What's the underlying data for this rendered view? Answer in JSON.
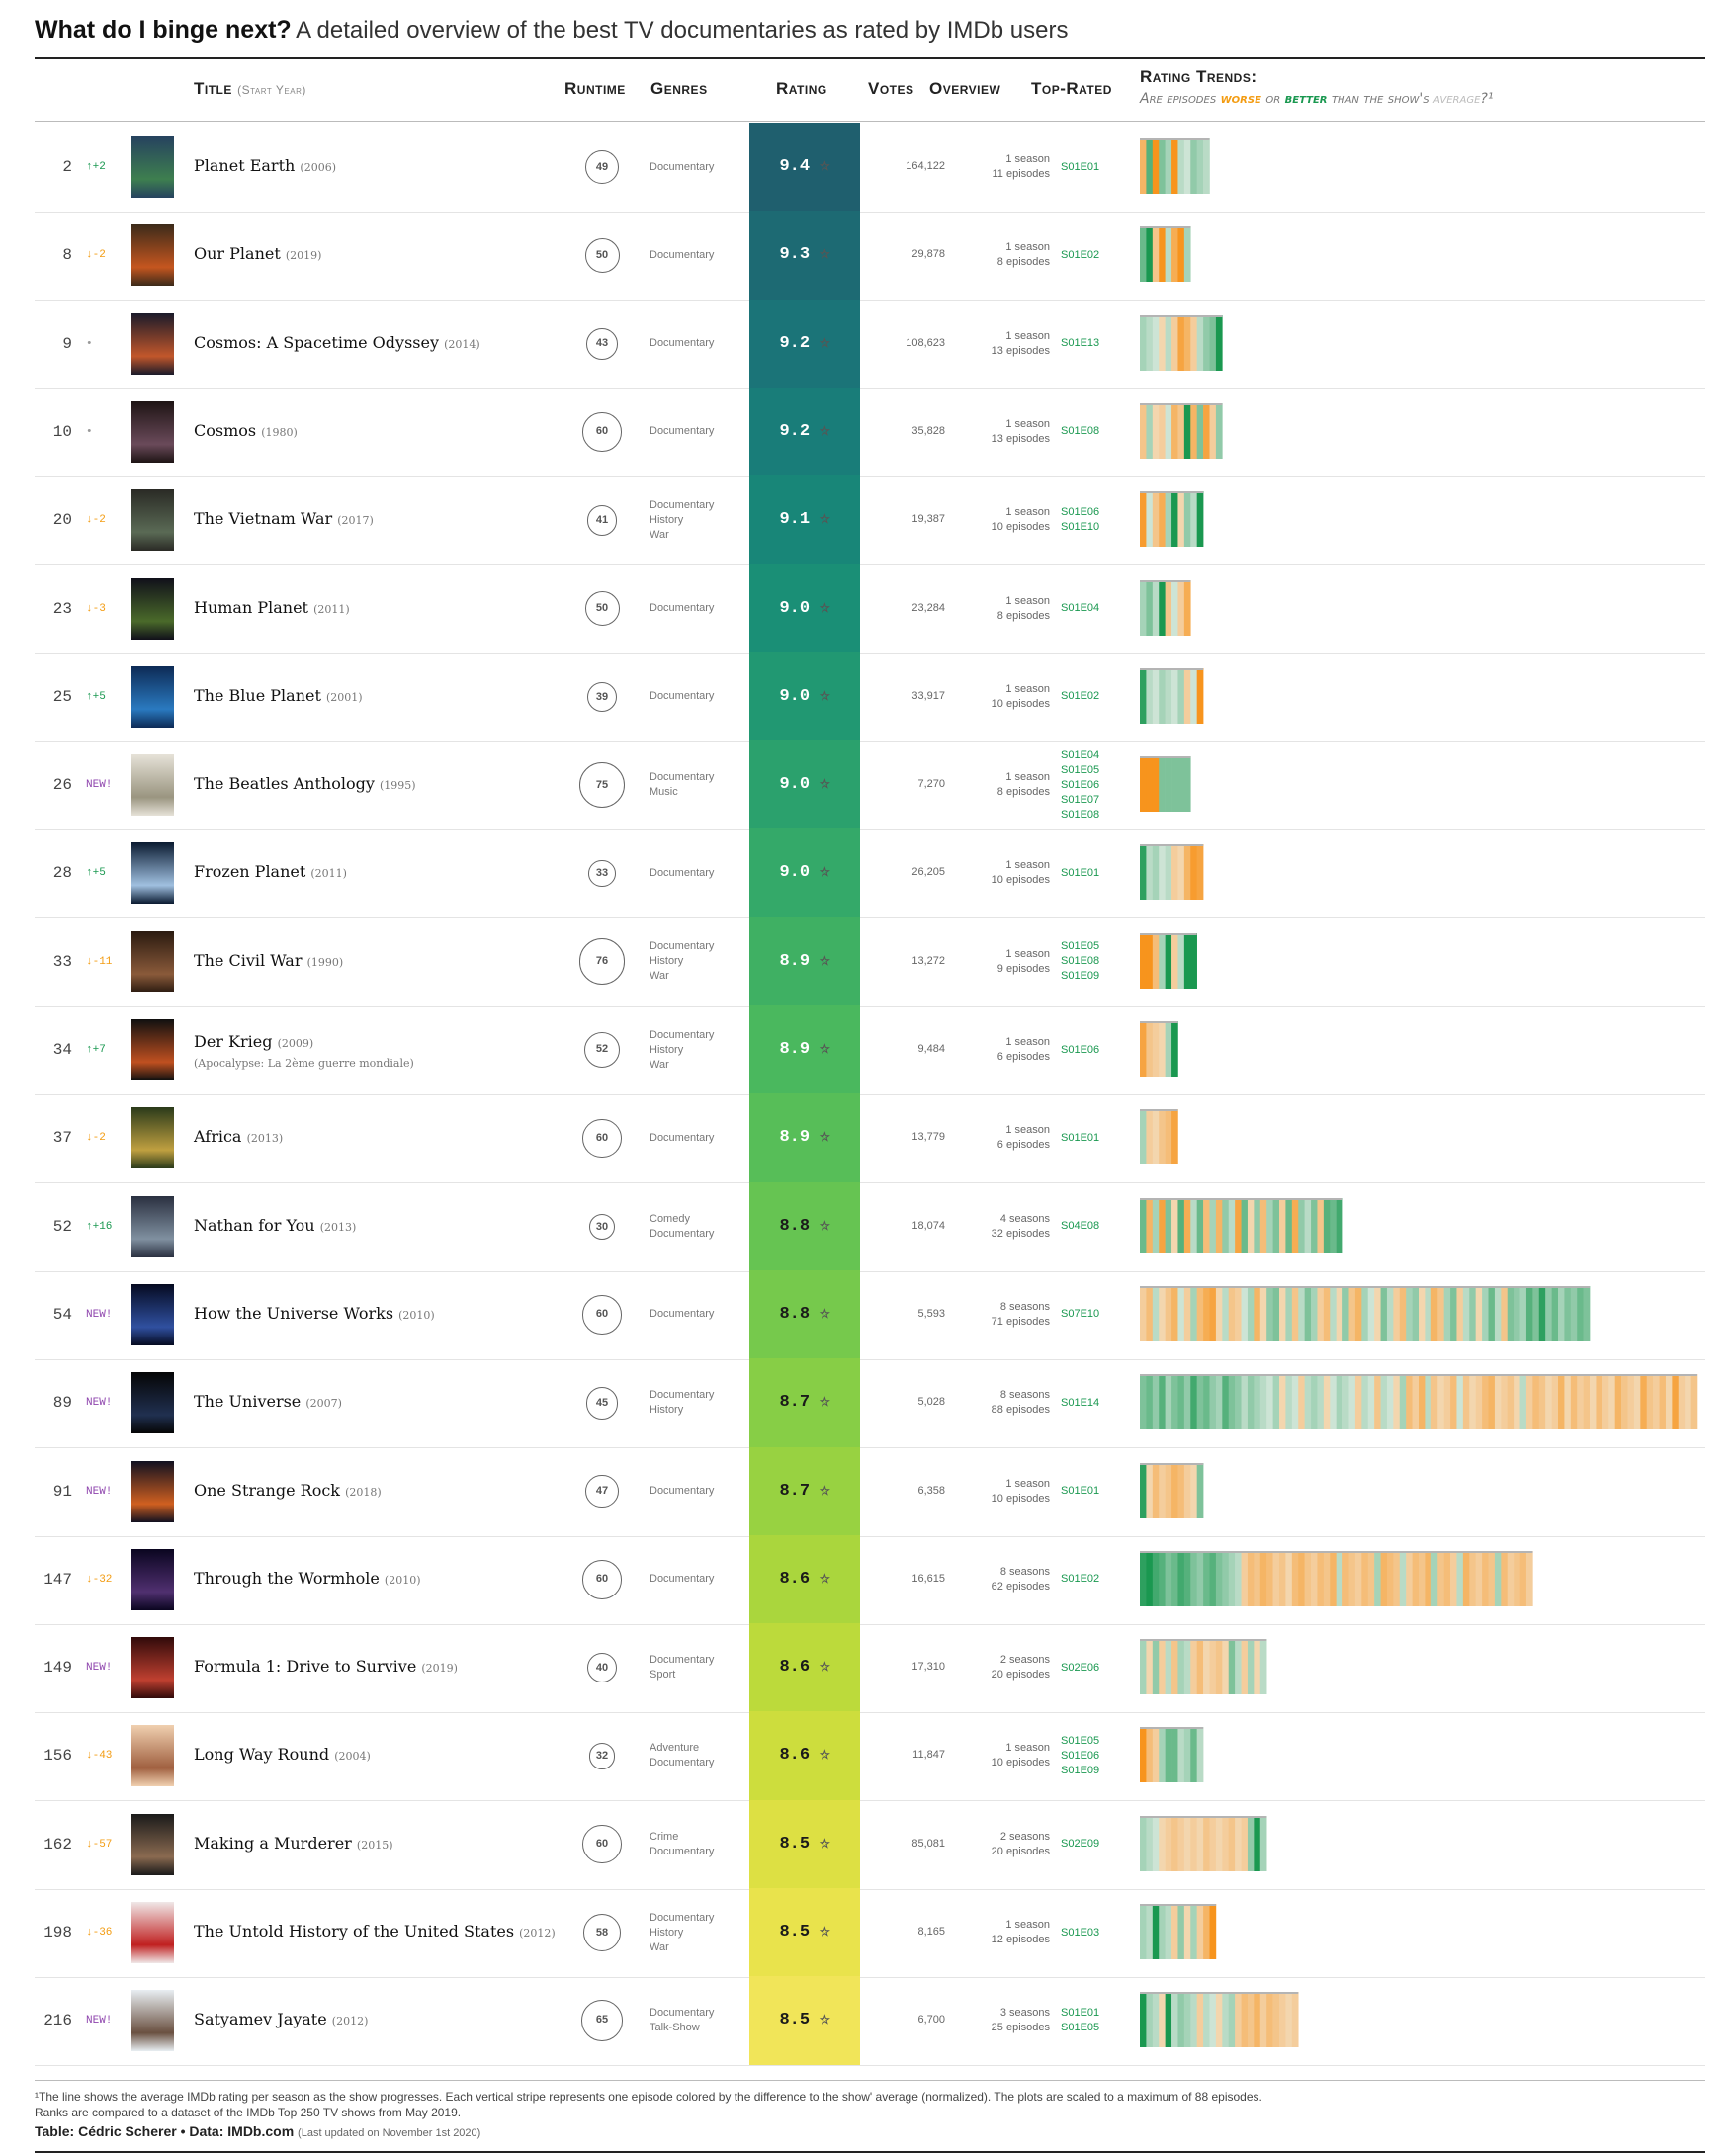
{
  "title": {
    "main": "What do I binge next?",
    "sub": "A detailed overview of the best TV documentaries as rated by IMDb users"
  },
  "headers": {
    "title": "Title",
    "start_year": "(Start Year)",
    "runtime": "Runtime",
    "genres": "Genres",
    "rating": "Rating",
    "votes": "Votes",
    "overview": "Overview",
    "top_rated": "Top-Rated",
    "trends": "Rating Trends:",
    "trends_sub_1": "Are episodes ",
    "trends_sub_worse": "worse",
    "trends_sub_2": " or ",
    "trends_sub_better": "better",
    "trends_sub_3": " than the show's ",
    "trends_sub_avg": "average",
    "trends_sub_4": "?¹"
  },
  "footnote": {
    "line1": "¹The line shows the average IMDb rating per season as the show progresses. Each vertical stripe represents one episode colored by the difference to the show' average (normalized). The plots are scaled to a maximum of 88 episodes.",
    "line2": "Ranks are compared to a dataset of the IMDb Top 250 TV shows from May 2019."
  },
  "credit": {
    "text": "Table: Cédric Scherer • Data: IMDb.com",
    "updated": "(Last updated on November 1st 2020)"
  },
  "colors": {
    "up": "#1a9850",
    "down": "#f39c12",
    "new": "#8e44ad",
    "worse": "#f7941d",
    "better": "#1a9850"
  },
  "chart_data": {
    "type": "table",
    "rows": [
      {
        "rank": "2",
        "change": "↑+2",
        "title": "Planet Earth",
        "year": "(2006)",
        "alt": "",
        "runtime": 49,
        "genres": [
          "Documentary"
        ],
        "rating": "9.4",
        "votes": "164,122",
        "seasons": "1 season",
        "episodes": 11,
        "episodes_label": "11 episodes",
        "top": [
          "S01E01"
        ],
        "pattern": [
          -0.6,
          0.7,
          -1.0,
          0.5,
          0.3,
          -1.0,
          0.2,
          0.1,
          0.4,
          0.3,
          0.2
        ]
      },
      {
        "rank": "8",
        "change": "↓-2",
        "title": "Our Planet",
        "year": "(2019)",
        "alt": "",
        "runtime": 50,
        "genres": [
          "Documentary"
        ],
        "rating": "9.3",
        "votes": "29,878",
        "seasons": "1 season",
        "episodes": 8,
        "episodes_label": "8 episodes",
        "top": [
          "S01E02"
        ],
        "pattern": [
          0.6,
          1.0,
          -0.4,
          -1.0,
          0.2,
          -0.7,
          -1.0,
          0.3
        ]
      },
      {
        "rank": "9",
        "change": "•",
        "title": "Cosmos: A Spacetime Odyssey",
        "year": "(2014)",
        "alt": "",
        "runtime": 43,
        "genres": [
          "Documentary"
        ],
        "rating": "9.2",
        "votes": "108,623",
        "seasons": "1 season",
        "episodes": 13,
        "episodes_label": "13 episodes",
        "top": [
          "S01E13"
        ],
        "pattern": [
          0.3,
          0.2,
          0.1,
          -0.2,
          0.2,
          -0.3,
          -0.8,
          -0.6,
          -0.3,
          0.2,
          0.4,
          0.5,
          1.0
        ]
      },
      {
        "rank": "10",
        "change": "•",
        "title": "Cosmos",
        "year": "(1980)",
        "alt": "",
        "runtime": 60,
        "genres": [
          "Documentary"
        ],
        "rating": "9.2",
        "votes": "35,828",
        "seasons": "1 season",
        "episodes": 13,
        "episodes_label": "13 episodes",
        "top": [
          "S01E08"
        ],
        "pattern": [
          -0.4,
          0.3,
          -0.2,
          -0.3,
          0.1,
          -0.6,
          -0.4,
          1.0,
          -0.6,
          0.5,
          -0.8,
          -0.3,
          0.4
        ]
      },
      {
        "rank": "20",
        "change": "↓-2",
        "title": "The Vietnam War",
        "year": "(2017)",
        "alt": "",
        "runtime": 41,
        "genres": [
          "Documentary",
          "History",
          "War"
        ],
        "rating": "9.1",
        "votes": "19,387",
        "seasons": "1 season",
        "episodes": 10,
        "episodes_label": "10 episodes",
        "top": [
          "S01E06",
          "S01E10"
        ],
        "pattern": [
          -0.9,
          0.1,
          -0.4,
          -0.7,
          0.3,
          1.0,
          -0.2,
          0.4,
          0.2,
          1.0
        ]
      },
      {
        "rank": "23",
        "change": "↓-3",
        "title": "Human Planet",
        "year": "(2011)",
        "alt": "",
        "runtime": 50,
        "genres": [
          "Documentary"
        ],
        "rating": "9.0",
        "votes": "23,284",
        "seasons": "1 season",
        "episodes": 8,
        "episodes_label": "8 episodes",
        "top": [
          "S01E04"
        ],
        "pattern": [
          0.3,
          0.5,
          0.2,
          1.0,
          -0.4,
          0.1,
          -0.3,
          -0.7
        ]
      },
      {
        "rank": "25",
        "change": "↑+5",
        "title": "The Blue Planet",
        "year": "(2001)",
        "alt": "",
        "runtime": 39,
        "genres": [
          "Documentary"
        ],
        "rating": "9.0",
        "votes": "33,917",
        "seasons": "1 season",
        "episodes": 10,
        "episodes_label": "10 episodes",
        "top": [
          "S01E02"
        ],
        "pattern": [
          0.9,
          0.2,
          0.1,
          0.3,
          0.2,
          0.1,
          0.3,
          -0.3,
          0.1,
          -1.0
        ]
      },
      {
        "rank": "26",
        "change": "NEW!",
        "title": "The Beatles Anthology",
        "year": "(1995)",
        "alt": "",
        "runtime": 75,
        "genres": [
          "Documentary",
          "Music"
        ],
        "rating": "9.0",
        "votes": "7,270",
        "seasons": "1 season",
        "episodes": 8,
        "episodes_label": "8 episodes",
        "top": [
          "S01E04",
          "S01E05",
          "S01E06",
          "S01E07",
          "S01E08"
        ],
        "pattern": [
          -1.0,
          -1.0,
          -1.0,
          0.5,
          0.5,
          0.5,
          0.5,
          0.5
        ]
      },
      {
        "rank": "28",
        "change": "↑+5",
        "title": "Frozen Planet",
        "year": "(2011)",
        "alt": "",
        "runtime": 33,
        "genres": [
          "Documentary"
        ],
        "rating": "9.0",
        "votes": "26,205",
        "seasons": "1 season",
        "episodes": 10,
        "episodes_label": "10 episodes",
        "top": [
          "S01E01"
        ],
        "pattern": [
          0.9,
          0.2,
          0.3,
          0.1,
          0.2,
          -0.3,
          -0.2,
          -0.6,
          -0.9,
          -0.8
        ]
      },
      {
        "rank": "33",
        "change": "↓-11",
        "title": "The Civil War",
        "year": "(1990)",
        "alt": "",
        "runtime": 76,
        "genres": [
          "Documentary",
          "History",
          "War"
        ],
        "rating": "8.9",
        "votes": "13,272",
        "seasons": "1 season",
        "episodes": 9,
        "episodes_label": "9 episodes",
        "top": [
          "S01E05",
          "S01E08",
          "S01E09"
        ],
        "pattern": [
          -1.0,
          -1.0,
          -0.5,
          0.3,
          1.0,
          -0.3,
          0.2,
          1.0,
          1.0
        ]
      },
      {
        "rank": "34",
        "change": "↑+7",
        "title": "Der Krieg",
        "year": "(2009)",
        "alt": "(Apocalypse: La 2ème guerre mondiale)",
        "runtime": 52,
        "genres": [
          "Documentary",
          "History",
          "War"
        ],
        "rating": "8.9",
        "votes": "9,484",
        "seasons": "1 season",
        "episodes": 6,
        "episodes_label": "6 episodes",
        "top": [
          "S01E06"
        ],
        "pattern": [
          -0.8,
          -0.4,
          -0.3,
          -0.2,
          0.3,
          1.0
        ]
      },
      {
        "rank": "37",
        "change": "↓-2",
        "title": "Africa",
        "year": "(2013)",
        "alt": "",
        "runtime": 60,
        "genres": [
          "Documentary"
        ],
        "rating": "8.9",
        "votes": "13,779",
        "seasons": "1 season",
        "episodes": 6,
        "episodes_label": "6 episodes",
        "top": [
          "S01E01"
        ],
        "pattern": [
          0.3,
          -0.3,
          -0.2,
          -0.4,
          -0.5,
          -0.8
        ]
      },
      {
        "rank": "52",
        "change": "↑+16",
        "title": "Nathan for You",
        "year": "(2013)",
        "alt": "",
        "runtime": 30,
        "genres": [
          "Comedy",
          "Documentary"
        ],
        "rating": "8.8",
        "votes": "18,074",
        "seasons": "4 seasons",
        "episodes": 32,
        "episodes_label": "32 episodes",
        "top": [
          "S04E08"
        ],
        "pattern": [
          0.6,
          -0.6,
          0.3,
          -0.8,
          0.5,
          -0.2,
          0.7,
          -0.7,
          0.2,
          0.6,
          -0.5,
          0.3,
          -0.6,
          0.4,
          0.2,
          -0.8,
          0.6,
          -0.2,
          0.4,
          -0.5,
          0.3,
          0.5,
          -0.3,
          0.6,
          -0.7,
          0.4,
          0.2,
          0.5,
          -0.4,
          0.7,
          0.6,
          0.8
        ]
      },
      {
        "rank": "54",
        "change": "NEW!",
        "title": "How the Universe Works",
        "year": "(2010)",
        "alt": "",
        "runtime": 60,
        "genres": [
          "Documentary"
        ],
        "rating": "8.8",
        "votes": "5,593",
        "seasons": "8 seasons",
        "episodes": 71,
        "episodes_label": "71 episodes",
        "top": [
          "S07E10"
        ],
        "pattern": [
          -0.3,
          -0.5,
          0.2,
          -0.2,
          -0.4,
          -0.6,
          0.1,
          -0.3,
          0.3,
          -0.5,
          -0.7,
          -0.8,
          -0.2,
          0.2,
          -0.4,
          -0.3,
          0.1,
          0.3,
          -0.6,
          -0.2,
          0.4,
          0.5,
          -0.2,
          0.3,
          -0.4,
          0.2,
          0.5,
          0.3,
          -0.3,
          -0.5,
          0.2,
          -0.2,
          0.4,
          -0.4,
          -0.6,
          0.3,
          0.1,
          -0.2,
          0.5,
          0.2,
          -0.3,
          -0.5,
          0.3,
          0.4,
          -0.2,
          0.2,
          -0.6,
          -0.4,
          0.3,
          0.5,
          -0.3,
          0.2,
          0.4,
          -0.2,
          0.3,
          0.6,
          0.2,
          -0.4,
          0.5,
          0.4,
          0.3,
          0.7,
          0.5,
          0.9,
          0.4,
          0.6,
          0.3,
          0.5,
          0.4,
          0.6,
          0.5
        ]
      },
      {
        "rank": "89",
        "change": "NEW!",
        "title": "The Universe",
        "year": "(2007)",
        "alt": "",
        "runtime": 45,
        "genres": [
          "Documentary",
          "History"
        ],
        "rating": "8.7",
        "votes": "5,028",
        "seasons": "8 seasons",
        "episodes": 88,
        "episodes_label": "88 episodes",
        "top": [
          "S01E14"
        ],
        "pattern": [
          0.5,
          0.6,
          0.4,
          0.7,
          0.3,
          0.5,
          0.6,
          0.4,
          0.8,
          0.5,
          0.6,
          0.4,
          0.3,
          0.7,
          0.5,
          0.4,
          0.2,
          0.4,
          0.3,
          0.2,
          0.1,
          0.3,
          -0.2,
          0.2,
          0.1,
          -0.3,
          0.2,
          0.3,
          0.2,
          -0.2,
          0.1,
          0.3,
          0.2,
          0.1,
          -0.3,
          0.2,
          0.1,
          -0.4,
          0.2,
          0.1,
          -0.2,
          0.3,
          -0.5,
          -0.3,
          -0.6,
          0.2,
          -0.4,
          -0.2,
          -0.3,
          -0.5,
          0.1,
          -0.4,
          -0.2,
          -0.3,
          -0.5,
          -0.6,
          -0.2,
          -0.3,
          -0.4,
          -0.2,
          0.2,
          -0.3,
          -0.5,
          -0.4,
          -0.2,
          -0.3,
          -0.6,
          -0.2,
          -0.5,
          -0.3,
          -0.4,
          -0.2,
          -0.5,
          -0.3,
          -0.2,
          -0.6,
          -0.4,
          -0.3,
          -0.2,
          -0.7,
          -0.4,
          -0.3,
          -0.5,
          -0.2,
          -0.8,
          -0.3,
          -0.2,
          -0.4
        ]
      },
      {
        "rank": "91",
        "change": "NEW!",
        "title": "One Strange Rock",
        "year": "(2018)",
        "alt": "",
        "runtime": 47,
        "genres": [
          "Documentary"
        ],
        "rating": "8.7",
        "votes": "6,358",
        "seasons": "1 season",
        "episodes": 10,
        "episodes_label": "10 episodes",
        "top": [
          "S01E01"
        ],
        "pattern": [
          0.9,
          -0.2,
          -0.5,
          -0.3,
          -0.4,
          -0.6,
          -0.5,
          -0.3,
          -0.2,
          0.5
        ]
      },
      {
        "rank": "147",
        "change": "↓-32",
        "title": "Through the Wormhole",
        "year": "(2010)",
        "alt": "",
        "runtime": 60,
        "genres": [
          "Documentary"
        ],
        "rating": "8.6",
        "votes": "16,615",
        "seasons": "8 seasons",
        "episodes": 62,
        "episodes_label": "62 episodes",
        "top": [
          "S01E02"
        ],
        "pattern": [
          0.9,
          1.0,
          0.8,
          0.7,
          0.5,
          0.6,
          0.8,
          0.7,
          0.5,
          0.4,
          0.6,
          0.7,
          0.5,
          0.4,
          0.3,
          0.2,
          -0.3,
          -0.5,
          -0.4,
          -0.6,
          -0.5,
          -0.3,
          -0.4,
          -0.2,
          -0.5,
          -0.6,
          -0.4,
          -0.3,
          -0.5,
          -0.4,
          -0.6,
          0.2,
          -0.5,
          -0.4,
          -0.3,
          -0.5,
          -0.4,
          0.3,
          -0.6,
          -0.5,
          -0.4,
          0.2,
          -0.3,
          -0.5,
          -0.4,
          -0.6,
          0.3,
          -0.4,
          -0.5,
          -0.3,
          0.2,
          -0.6,
          -0.4,
          -0.3,
          -0.5,
          -0.4,
          0.3,
          -0.5,
          -0.3,
          -0.4,
          -0.5,
          -0.3
        ]
      },
      {
        "rank": "149",
        "change": "NEW!",
        "title": "Formula 1: Drive to Survive",
        "year": "(2019)",
        "alt": "",
        "runtime": 40,
        "genres": [
          "Documentary",
          "Sport"
        ],
        "rating": "8.6",
        "votes": "17,310",
        "seasons": "2 seasons",
        "episodes": 20,
        "episodes_label": "20 episodes",
        "top": [
          "S02E06"
        ],
        "pattern": [
          0.3,
          -0.2,
          0.4,
          -0.3,
          0.2,
          -0.4,
          0.3,
          0.2,
          -0.3,
          -0.5,
          -0.2,
          -0.3,
          -0.4,
          -0.2,
          0.5,
          0.2,
          -0.3,
          0.3,
          -0.2,
          0.2
        ]
      },
      {
        "rank": "156",
        "change": "↓-43",
        "title": "Long Way Round",
        "year": "(2004)",
        "alt": "",
        "runtime": 32,
        "genres": [
          "Adventure",
          "Documentary"
        ],
        "rating": "8.6",
        "votes": "11,847",
        "seasons": "1 season",
        "episodes": 10,
        "episodes_label": "10 episodes",
        "top": [
          "S01E05",
          "S01E06",
          "S01E09"
        ],
        "pattern": [
          -1.0,
          -0.5,
          -0.3,
          0.3,
          0.6,
          0.6,
          0.2,
          0.3,
          0.6,
          0.2
        ]
      },
      {
        "rank": "162",
        "change": "↓-57",
        "title": "Making a Murderer",
        "year": "(2015)",
        "alt": "",
        "runtime": 60,
        "genres": [
          "Crime",
          "Documentary"
        ],
        "rating": "8.5",
        "votes": "85,081",
        "seasons": "2 seasons",
        "episodes": 20,
        "episodes_label": "20 episodes",
        "top": [
          "S02E09"
        ],
        "pattern": [
          0.3,
          0.2,
          0.1,
          -0.2,
          -0.3,
          -0.4,
          -0.3,
          -0.2,
          -0.3,
          -0.2,
          -0.4,
          -0.3,
          -0.2,
          -0.3,
          -0.4,
          -0.2,
          -0.3,
          0.4,
          1.0,
          0.3
        ]
      },
      {
        "rank": "198",
        "change": "↓-36",
        "title": "The Untold History of the United States",
        "year": "(2012)",
        "alt": "",
        "runtime": 58,
        "genres": [
          "Documentary",
          "History",
          "War"
        ],
        "rating": "8.5",
        "votes": "8,165",
        "seasons": "1 season",
        "episodes": 12,
        "episodes_label": "12 episodes",
        "top": [
          "S01E03"
        ],
        "pattern": [
          0.3,
          0.2,
          1.0,
          0.3,
          0.2,
          -0.3,
          0.4,
          -0.2,
          0.3,
          -0.3,
          -0.6,
          -1.0
        ]
      },
      {
        "rank": "216",
        "change": "NEW!",
        "title": "Satyamev Jayate",
        "year": "(2012)",
        "alt": "",
        "runtime": 65,
        "genres": [
          "Documentary",
          "Talk-Show"
        ],
        "rating": "8.5",
        "votes": "6,700",
        "seasons": "3 seasons",
        "episodes": 25,
        "episodes_label": "25 episodes",
        "top": [
          "S01E01",
          "S01E05"
        ],
        "pattern": [
          1.0,
          0.3,
          0.2,
          -0.2,
          1.0,
          0.2,
          0.4,
          0.3,
          0.2,
          -0.3,
          0.2,
          0.1,
          -0.2,
          0.2,
          0.3,
          -0.3,
          -0.5,
          -0.4,
          -0.6,
          -0.3,
          -0.5,
          -0.4,
          -0.3,
          -0.2,
          -0.3
        ]
      }
    ]
  }
}
